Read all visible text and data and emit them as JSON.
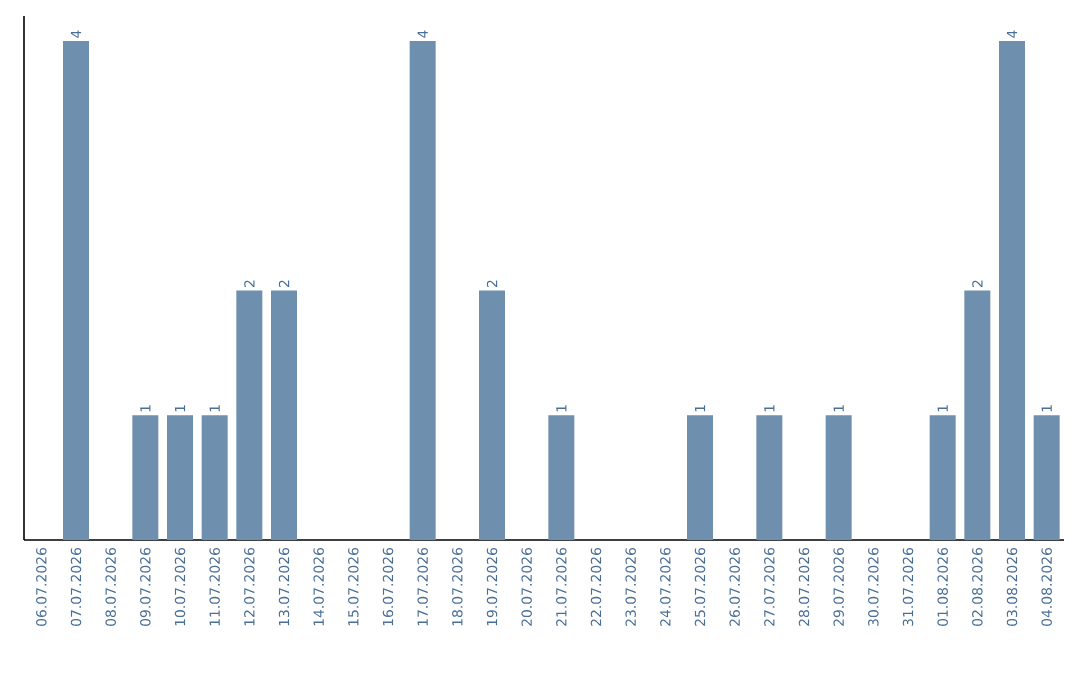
{
  "chart_data": {
    "type": "bar",
    "categories": [
      "06.07.2026",
      "07.07.2026",
      "08.07.2026",
      "09.07.2026",
      "10.07.2026",
      "11.07.2026",
      "12.07.2026",
      "13.07.2026",
      "14.07.2026",
      "15.07.2026",
      "16.07.2026",
      "17.07.2026",
      "18.07.2026",
      "19.07.2026",
      "20.07.2026",
      "21.07.2026",
      "22.07.2026",
      "23.07.2026",
      "24.07.2026",
      "25.07.2026",
      "26.07.2026",
      "27.07.2026",
      "28.07.2026",
      "29.07.2026",
      "30.07.2026",
      "31.07.2026",
      "01.08.2026",
      "02.08.2026",
      "03.08.2026",
      "04.08.2026"
    ],
    "values": [
      0,
      4,
      0,
      1,
      1,
      1,
      2,
      2,
      0,
      0,
      0,
      4,
      0,
      2,
      0,
      1,
      0,
      0,
      0,
      1,
      0,
      1,
      0,
      1,
      0,
      0,
      1,
      2,
      4,
      1
    ],
    "value_labels": [
      null,
      "4",
      null,
      "1",
      "1",
      "1",
      "2",
      "2",
      null,
      null,
      null,
      "4",
      null,
      "2",
      null,
      "1",
      null,
      null,
      null,
      "1",
      null,
      "1",
      null,
      "1",
      null,
      null,
      "1",
      "2",
      "4",
      "1"
    ],
    "color": "#6f8fae"
  }
}
